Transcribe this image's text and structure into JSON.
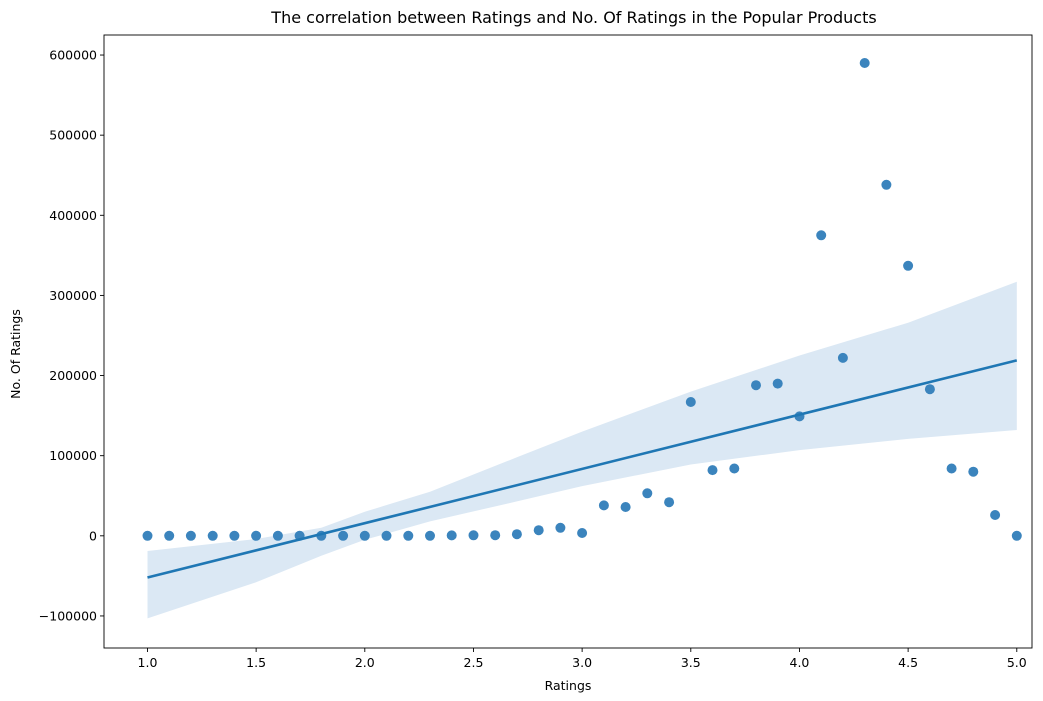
{
  "chart_data": {
    "type": "scatter",
    "title": "The correlation between Ratings and No. Of Ratings in the Popular Products",
    "xlabel": "Ratings",
    "ylabel": "No. Of Ratings",
    "xlim": [
      0.8,
      5.07
    ],
    "ylim": [
      -140000,
      625000
    ],
    "xticks": [
      1.0,
      1.5,
      2.0,
      2.5,
      3.0,
      3.5,
      4.0,
      4.5,
      5.0
    ],
    "xtick_labels": [
      "1.0",
      "1.5",
      "2.0",
      "2.5",
      "3.0",
      "3.5",
      "4.0",
      "4.5",
      "5.0"
    ],
    "yticks": [
      -100000,
      0,
      100000,
      200000,
      300000,
      400000,
      500000,
      600000
    ],
    "ytick_labels": [
      "−100000",
      "0",
      "100000",
      "200000",
      "300000",
      "400000",
      "500000",
      "600000"
    ],
    "grid": false,
    "point_color": "#3b84bd",
    "line_color": "#1f77b4",
    "band_color": "#dbe8f4",
    "points": [
      {
        "x": 1.0,
        "y": 0
      },
      {
        "x": 1.1,
        "y": 0
      },
      {
        "x": 1.2,
        "y": 0
      },
      {
        "x": 1.3,
        "y": 0
      },
      {
        "x": 1.4,
        "y": 0
      },
      {
        "x": 1.5,
        "y": 0
      },
      {
        "x": 1.6,
        "y": 0
      },
      {
        "x": 1.7,
        "y": 0
      },
      {
        "x": 1.8,
        "y": 0
      },
      {
        "x": 1.9,
        "y": 0
      },
      {
        "x": 2.0,
        "y": 0
      },
      {
        "x": 2.1,
        "y": 0
      },
      {
        "x": 2.2,
        "y": 0
      },
      {
        "x": 2.3,
        "y": 0
      },
      {
        "x": 2.4,
        "y": 500
      },
      {
        "x": 2.5,
        "y": 600
      },
      {
        "x": 2.6,
        "y": 800
      },
      {
        "x": 2.7,
        "y": 2000
      },
      {
        "x": 2.8,
        "y": 7000
      },
      {
        "x": 2.9,
        "y": 10000
      },
      {
        "x": 3.0,
        "y": 3500
      },
      {
        "x": 3.1,
        "y": 38000
      },
      {
        "x": 3.2,
        "y": 36000
      },
      {
        "x": 3.3,
        "y": 53000
      },
      {
        "x": 3.4,
        "y": 42000
      },
      {
        "x": 3.5,
        "y": 167000
      },
      {
        "x": 3.6,
        "y": 82000
      },
      {
        "x": 3.7,
        "y": 84000
      },
      {
        "x": 3.8,
        "y": 188000
      },
      {
        "x": 3.9,
        "y": 190000
      },
      {
        "x": 4.0,
        "y": 149000
      },
      {
        "x": 4.1,
        "y": 375000
      },
      {
        "x": 4.2,
        "y": 222000
      },
      {
        "x": 4.3,
        "y": 590000
      },
      {
        "x": 4.4,
        "y": 438000
      },
      {
        "x": 4.5,
        "y": 337000
      },
      {
        "x": 4.6,
        "y": 183000
      },
      {
        "x": 4.7,
        "y": 84000
      },
      {
        "x": 4.8,
        "y": 80000
      },
      {
        "x": 4.9,
        "y": 26000
      },
      {
        "x": 5.0,
        "y": 0
      }
    ],
    "regression": {
      "x": [
        1.0,
        5.0
      ],
      "y": [
        -52000,
        219000
      ]
    },
    "confidence_band": [
      {
        "x": 1.0,
        "lower": -103000,
        "upper": -19000
      },
      {
        "x": 1.5,
        "lower": -58000,
        "upper": -4000
      },
      {
        "x": 1.8,
        "lower": -25000,
        "upper": 10000
      },
      {
        "x": 2.0,
        "lower": -5000,
        "upper": 30000
      },
      {
        "x": 2.3,
        "lower": 18000,
        "upper": 55000
      },
      {
        "x": 2.7,
        "lower": 43000,
        "upper": 98000
      },
      {
        "x": 3.0,
        "lower": 62000,
        "upper": 130000
      },
      {
        "x": 3.5,
        "lower": 89000,
        "upper": 180000
      },
      {
        "x": 4.0,
        "lower": 107000,
        "upper": 225000
      },
      {
        "x": 4.5,
        "lower": 121000,
        "upper": 266000
      },
      {
        "x": 5.0,
        "lower": 132000,
        "upper": 317000
      }
    ]
  }
}
